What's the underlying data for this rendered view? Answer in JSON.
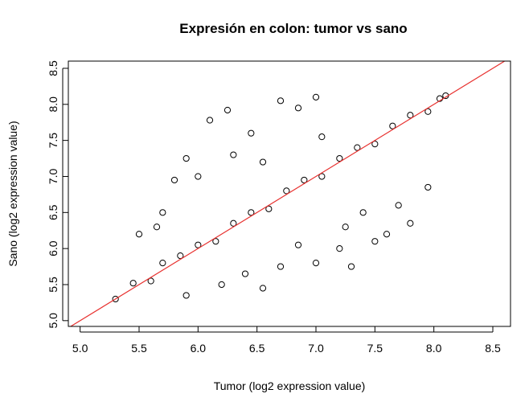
{
  "chart_data": {
    "type": "scatter",
    "title": "Expresión en colon: tumor vs sano",
    "xlabel": "Tumor (log2 expression value)",
    "ylabel": "Sano (log2 expression value)",
    "xlim": [
      4.9,
      8.65
    ],
    "ylim": [
      4.92,
      8.6
    ],
    "x_ticks": [
      "5.0",
      "5.5",
      "6.0",
      "6.5",
      "7.0",
      "7.5",
      "8.0",
      "8.5"
    ],
    "y_ticks": [
      "5.0",
      "5.5",
      "6.0",
      "6.5",
      "7.0",
      "7.5",
      "8.0",
      "8.5"
    ],
    "grid": false,
    "marker": "open-circle",
    "point_color": "#000000",
    "reference_line": {
      "type": "identity",
      "slope": 1,
      "intercept": 0,
      "color": "#e8312f"
    },
    "series": [
      {
        "points": [
          [
            5.3,
            5.3
          ],
          [
            5.45,
            5.52
          ],
          [
            5.6,
            5.55
          ],
          [
            5.7,
            5.8
          ],
          [
            5.85,
            5.9
          ],
          [
            6.0,
            6.05
          ],
          [
            6.15,
            6.1
          ],
          [
            6.3,
            6.35
          ],
          [
            6.45,
            6.5
          ],
          [
            6.6,
            6.55
          ],
          [
            6.75,
            6.8
          ],
          [
            6.9,
            6.95
          ],
          [
            7.05,
            7.0
          ],
          [
            7.2,
            7.25
          ],
          [
            7.35,
            7.4
          ],
          [
            7.5,
            7.45
          ],
          [
            7.65,
            7.7
          ],
          [
            7.8,
            7.85
          ],
          [
            7.95,
            7.9
          ],
          [
            8.05,
            8.08
          ],
          [
            8.1,
            8.12
          ],
          [
            5.5,
            6.2
          ],
          [
            5.7,
            6.5
          ],
          [
            5.8,
            6.95
          ],
          [
            5.9,
            7.25
          ],
          [
            6.1,
            7.78
          ],
          [
            6.25,
            7.92
          ],
          [
            6.45,
            7.6
          ],
          [
            6.7,
            8.05
          ],
          [
            6.85,
            7.95
          ],
          [
            7.0,
            8.1
          ],
          [
            7.05,
            7.55
          ],
          [
            6.3,
            7.3
          ],
          [
            6.0,
            7.0
          ],
          [
            5.65,
            6.3
          ],
          [
            6.55,
            7.2
          ],
          [
            5.9,
            5.35
          ],
          [
            6.2,
            5.5
          ],
          [
            6.55,
            5.45
          ],
          [
            6.7,
            5.75
          ],
          [
            7.0,
            5.8
          ],
          [
            7.2,
            6.0
          ],
          [
            7.3,
            5.75
          ],
          [
            7.5,
            6.1
          ],
          [
            7.6,
            6.2
          ],
          [
            7.8,
            6.35
          ],
          [
            7.95,
            6.85
          ],
          [
            7.4,
            6.5
          ],
          [
            7.25,
            6.3
          ],
          [
            6.85,
            6.05
          ],
          [
            6.4,
            5.65
          ],
          [
            7.7,
            6.6
          ]
        ]
      }
    ]
  }
}
